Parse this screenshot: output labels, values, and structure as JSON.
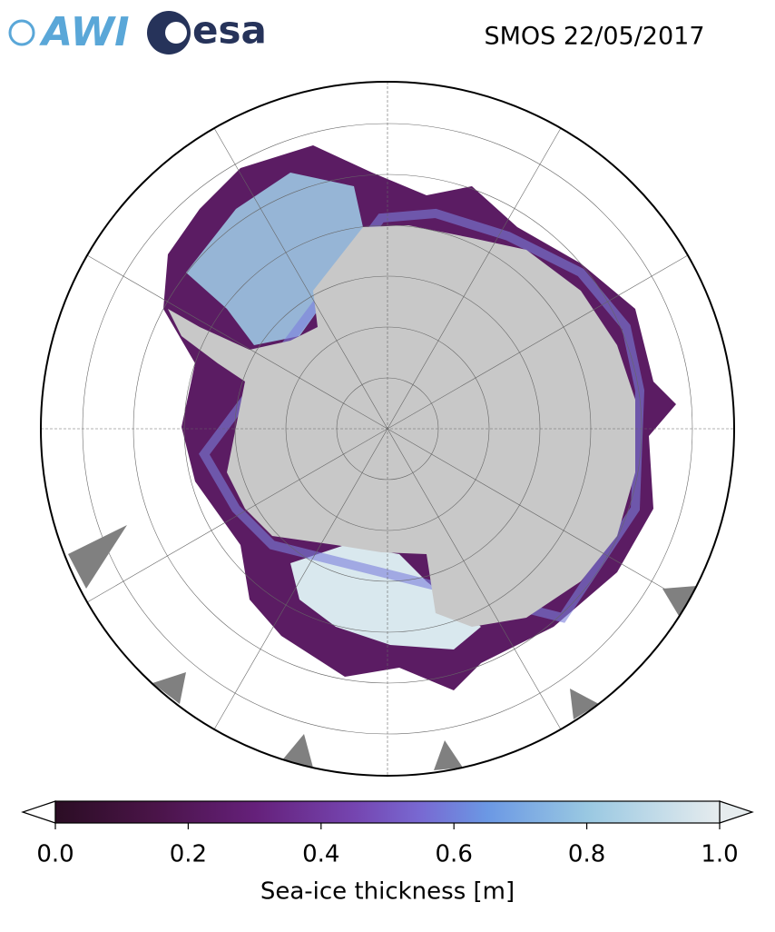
{
  "logos": {
    "awi": "AWI",
    "esa": "esa"
  },
  "title": "SMOS 22/05/2017",
  "colorbar": {
    "label": "Sea-ice thickness [m]",
    "lim": [
      0,
      1
    ],
    "ticks": [
      {
        "value": 0,
        "label": "0.0"
      },
      0.2,
      0.4,
      0.6,
      0.8,
      {
        "value": 1,
        "label": "1.0"
      }
    ]
  }
}
